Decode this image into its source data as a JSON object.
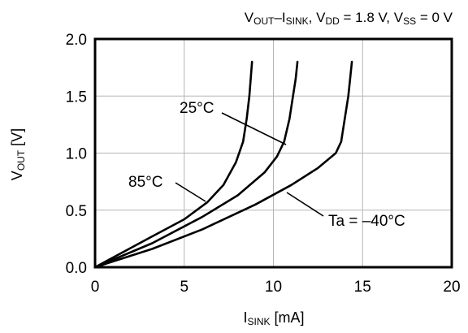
{
  "chart_data": {
    "type": "line",
    "title": {
      "main": "V",
      "main_sub": "OUT",
      "sep": "–I",
      "sep_sub": "SINK",
      "vdd_pre": ", V",
      "vdd_sub": "DD",
      "vdd_val": " = 1.8 V, V",
      "vss_sub": "SS",
      "vss_val": " = 0 V"
    },
    "xlabel": {
      "main": "I",
      "sub": "SINK",
      "unit": " [mA]"
    },
    "ylabel": {
      "main": "V",
      "sub": "OUT",
      "unit": " [V]"
    },
    "xlim": [
      0,
      20
    ],
    "ylim": [
      0,
      2.0
    ],
    "x_ticks": [
      0,
      5,
      10,
      15,
      20
    ],
    "x_tick_labels": [
      "0",
      "5",
      "10",
      "15",
      "20"
    ],
    "y_ticks": [
      0,
      0.5,
      1.0,
      1.5,
      2.0
    ],
    "y_tick_labels": [
      "0.0",
      "0.5",
      "1.0",
      "1.5",
      "2.0"
    ],
    "grid": true,
    "series": [
      {
        "name": "85°C",
        "points": [
          [
            0,
            0
          ],
          [
            3.2,
            0.27
          ],
          [
            5.0,
            0.42
          ],
          [
            6.3,
            0.57
          ],
          [
            7.2,
            0.72
          ],
          [
            7.9,
            0.92
          ],
          [
            8.3,
            1.1
          ],
          [
            8.5,
            1.3
          ],
          [
            8.65,
            1.5
          ],
          [
            8.8,
            1.8
          ]
        ]
      },
      {
        "name": "25°C",
        "points": [
          [
            0,
            0
          ],
          [
            3.2,
            0.21
          ],
          [
            6.0,
            0.44
          ],
          [
            8.0,
            0.63
          ],
          [
            9.5,
            0.83
          ],
          [
            10.2,
            0.97
          ],
          [
            10.6,
            1.1
          ],
          [
            10.9,
            1.3
          ],
          [
            11.1,
            1.5
          ],
          [
            11.25,
            1.65
          ],
          [
            11.35,
            1.8
          ]
        ]
      },
      {
        "name": "Ta = –40°C",
        "points": [
          [
            0,
            0
          ],
          [
            3.2,
            0.16
          ],
          [
            6.0,
            0.33
          ],
          [
            9.0,
            0.55
          ],
          [
            11.0,
            0.72
          ],
          [
            12.5,
            0.87
          ],
          [
            13.5,
            1.0
          ],
          [
            13.8,
            1.1
          ],
          [
            14.0,
            1.3
          ],
          [
            14.2,
            1.5
          ],
          [
            14.4,
            1.8
          ]
        ]
      }
    ],
    "annotations": [
      {
        "text": "25°C",
        "series": "25°C"
      },
      {
        "text": "85°C",
        "series": "85°C"
      },
      {
        "text": "Ta = –40°C",
        "series": "Ta = –40°C"
      }
    ]
  }
}
